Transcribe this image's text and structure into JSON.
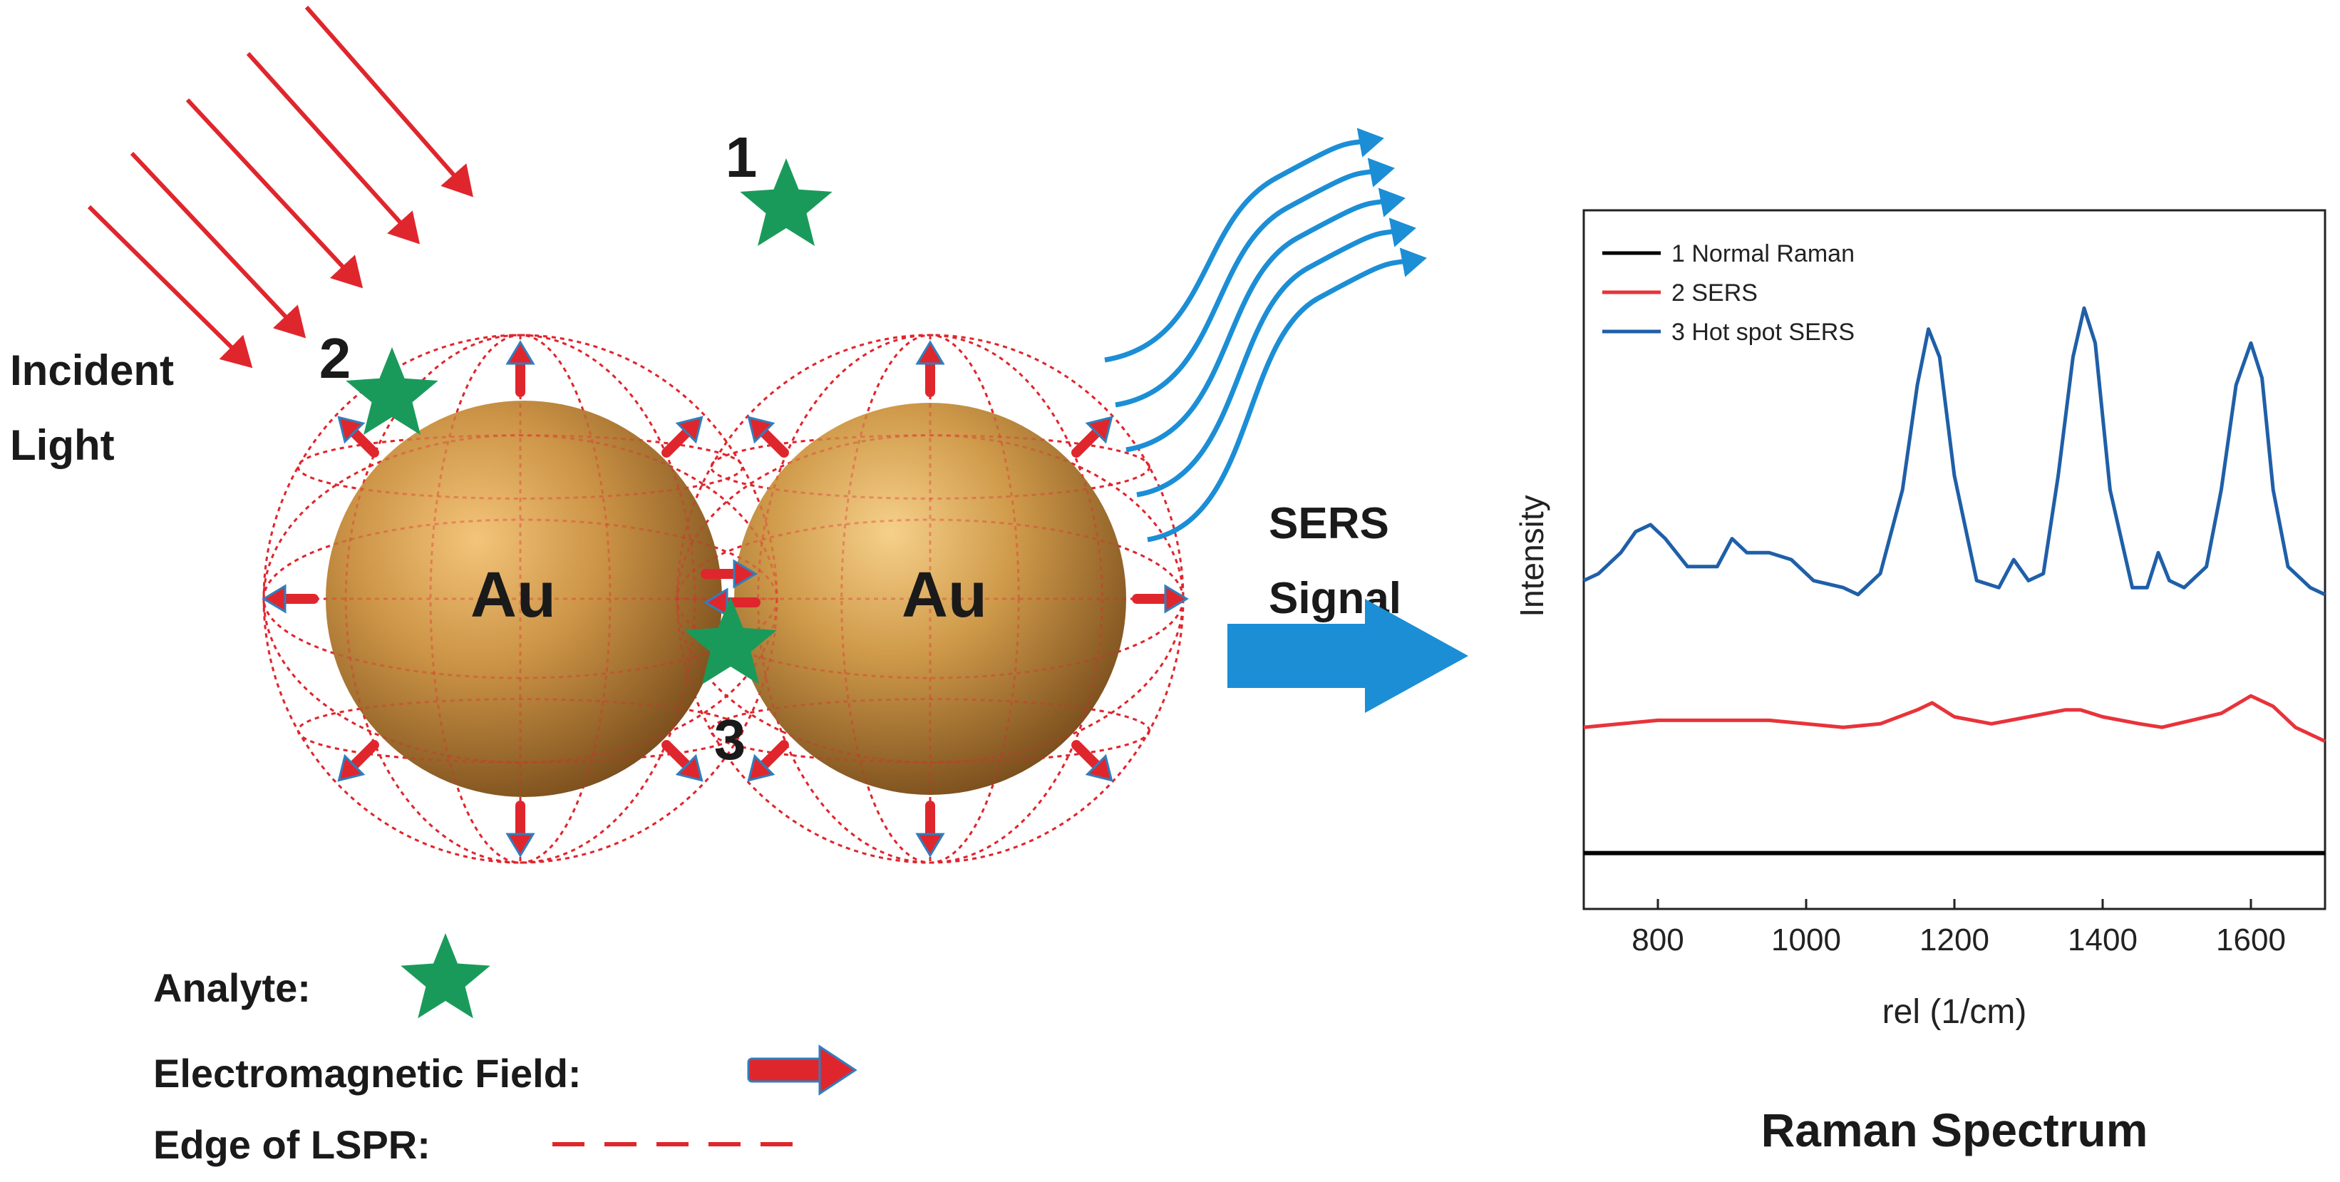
{
  "labels": {
    "incident_line1": "Incident",
    "incident_line2": "Light",
    "site1": "1",
    "site2": "2",
    "site3": "3",
    "au_left": "Au",
    "au_right": "Au",
    "sers_line1": "SERS",
    "sers_line2": "Signal",
    "spectrum_title": "Raman Spectrum"
  },
  "legend_key": {
    "analyte": "Analyte:",
    "em_field": "Electromagnetic Field:",
    "lspr_edge": "Edge of LSPR:"
  },
  "colors": {
    "incident_light": "#e0262d",
    "field_arrow": "#e0262d",
    "field_arrow_tip": "#2e7fbf",
    "lspr_edge": "#e0262d",
    "analyte_star": "#1a9a5a",
    "gold": "#c8913f",
    "sers_signal": "#1b8ed6",
    "normal_raman": "#000000",
    "sers": "#e8333a",
    "hotspot_sers": "#1f5fa8"
  },
  "chart_data": {
    "type": "line",
    "title": "Raman Spectrum",
    "xlabel": "rel (1/cm)",
    "ylabel": "Intensity",
    "xlim": [
      700,
      1700
    ],
    "ylim": [
      0,
      10
    ],
    "xticks": [
      800,
      1000,
      1200,
      1400,
      1600
    ],
    "yticks_shown": false,
    "legend_placement": "top-left",
    "series": [
      {
        "name": "1 Normal Raman",
        "color": "#000000",
        "x": [
          700,
          1700
        ],
        "y": [
          0.8,
          0.8
        ]
      },
      {
        "name": "2 SERS",
        "color": "#e8333a",
        "x": [
          700,
          750,
          800,
          850,
          900,
          950,
          1000,
          1050,
          1100,
          1150,
          1170,
          1200,
          1250,
          1300,
          1350,
          1370,
          1400,
          1450,
          1480,
          1520,
          1560,
          1600,
          1630,
          1660,
          1700
        ],
        "y": [
          2.6,
          2.65,
          2.7,
          2.7,
          2.7,
          2.7,
          2.65,
          2.6,
          2.65,
          2.85,
          2.95,
          2.75,
          2.65,
          2.75,
          2.85,
          2.85,
          2.75,
          2.65,
          2.6,
          2.7,
          2.8,
          3.05,
          2.9,
          2.6,
          2.4
        ]
      },
      {
        "name": "3 Hot spot SERS",
        "color": "#1f5fa8",
        "x": [
          700,
          720,
          750,
          770,
          790,
          810,
          840,
          880,
          900,
          920,
          950,
          980,
          1010,
          1050,
          1070,
          1100,
          1130,
          1150,
          1165,
          1180,
          1200,
          1230,
          1260,
          1280,
          1300,
          1320,
          1340,
          1360,
          1375,
          1390,
          1410,
          1440,
          1460,
          1475,
          1490,
          1510,
          1540,
          1560,
          1580,
          1600,
          1615,
          1630,
          1650,
          1680,
          1700
        ],
        "y": [
          4.7,
          4.8,
          5.1,
          5.4,
          5.5,
          5.3,
          4.9,
          4.9,
          5.3,
          5.1,
          5.1,
          5.0,
          4.7,
          4.6,
          4.5,
          4.8,
          6.0,
          7.5,
          8.3,
          7.9,
          6.2,
          4.7,
          4.6,
          5.0,
          4.7,
          4.8,
          6.2,
          7.9,
          8.6,
          8.1,
          6.0,
          4.6,
          4.6,
          5.1,
          4.7,
          4.6,
          4.9,
          6.0,
          7.5,
          8.1,
          7.6,
          6.0,
          4.9,
          4.6,
          4.5
        ]
      }
    ]
  }
}
